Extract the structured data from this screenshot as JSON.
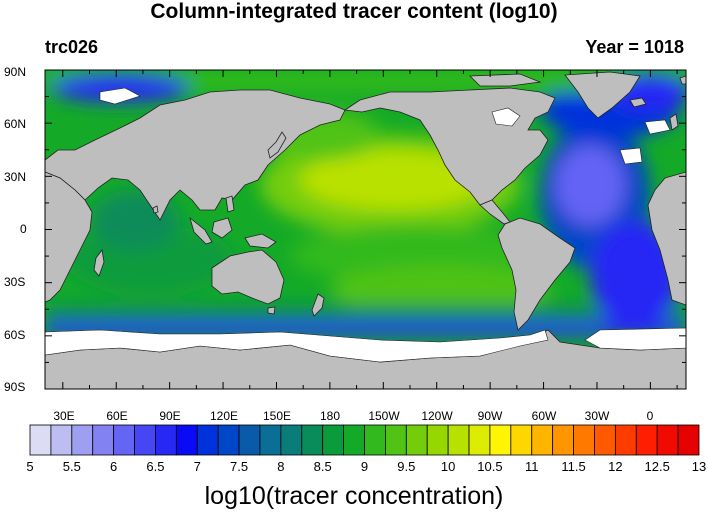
{
  "title": "Column-integrated tracer content (log10)",
  "left_subtitle": "trc026",
  "right_subtitle": "Year = 1018",
  "lat_labels": [
    "90N",
    "60N",
    "30N",
    "0",
    "30S",
    "60S",
    "90S"
  ],
  "lon_labels": [
    "30E",
    "60E",
    "90E",
    "120E",
    "150E",
    "180",
    "150W",
    "120W",
    "90W",
    "60W",
    "30W",
    "0"
  ],
  "colorbar": {
    "tick_labels": [
      "5",
      "5.5",
      "6",
      "6.5",
      "7",
      "7.5",
      "8",
      "8.5",
      "9",
      "9.5",
      "10",
      "10.5",
      "11",
      "11.5",
      "12",
      "12.5",
      "13"
    ],
    "title": "log10(tracer concentration)",
    "colors": [
      "#dcdcf5",
      "#bdbdf2",
      "#9f9ff2",
      "#8282f2",
      "#6464f5",
      "#4646f5",
      "#2828f5",
      "#0a0af5",
      "#0032dc",
      "#0046c8",
      "#0a5aaa",
      "#0a6e96",
      "#0a7d78",
      "#0a8c5a",
      "#0a9b3c",
      "#14aa28",
      "#32b91e",
      "#50c314",
      "#73cd0a",
      "#96d700",
      "#b9e100",
      "#dceb00",
      "#fff500",
      "#ffd700",
      "#ffb400",
      "#ff9600",
      "#ff7800",
      "#ff5a00",
      "#ff3c00",
      "#ff1e00",
      "#f00a00",
      "#e60000"
    ]
  },
  "map": {
    "land_color": "#bebebe",
    "ice_color": "#ffffff",
    "lon_start": 20,
    "lon_end": 380
  }
}
